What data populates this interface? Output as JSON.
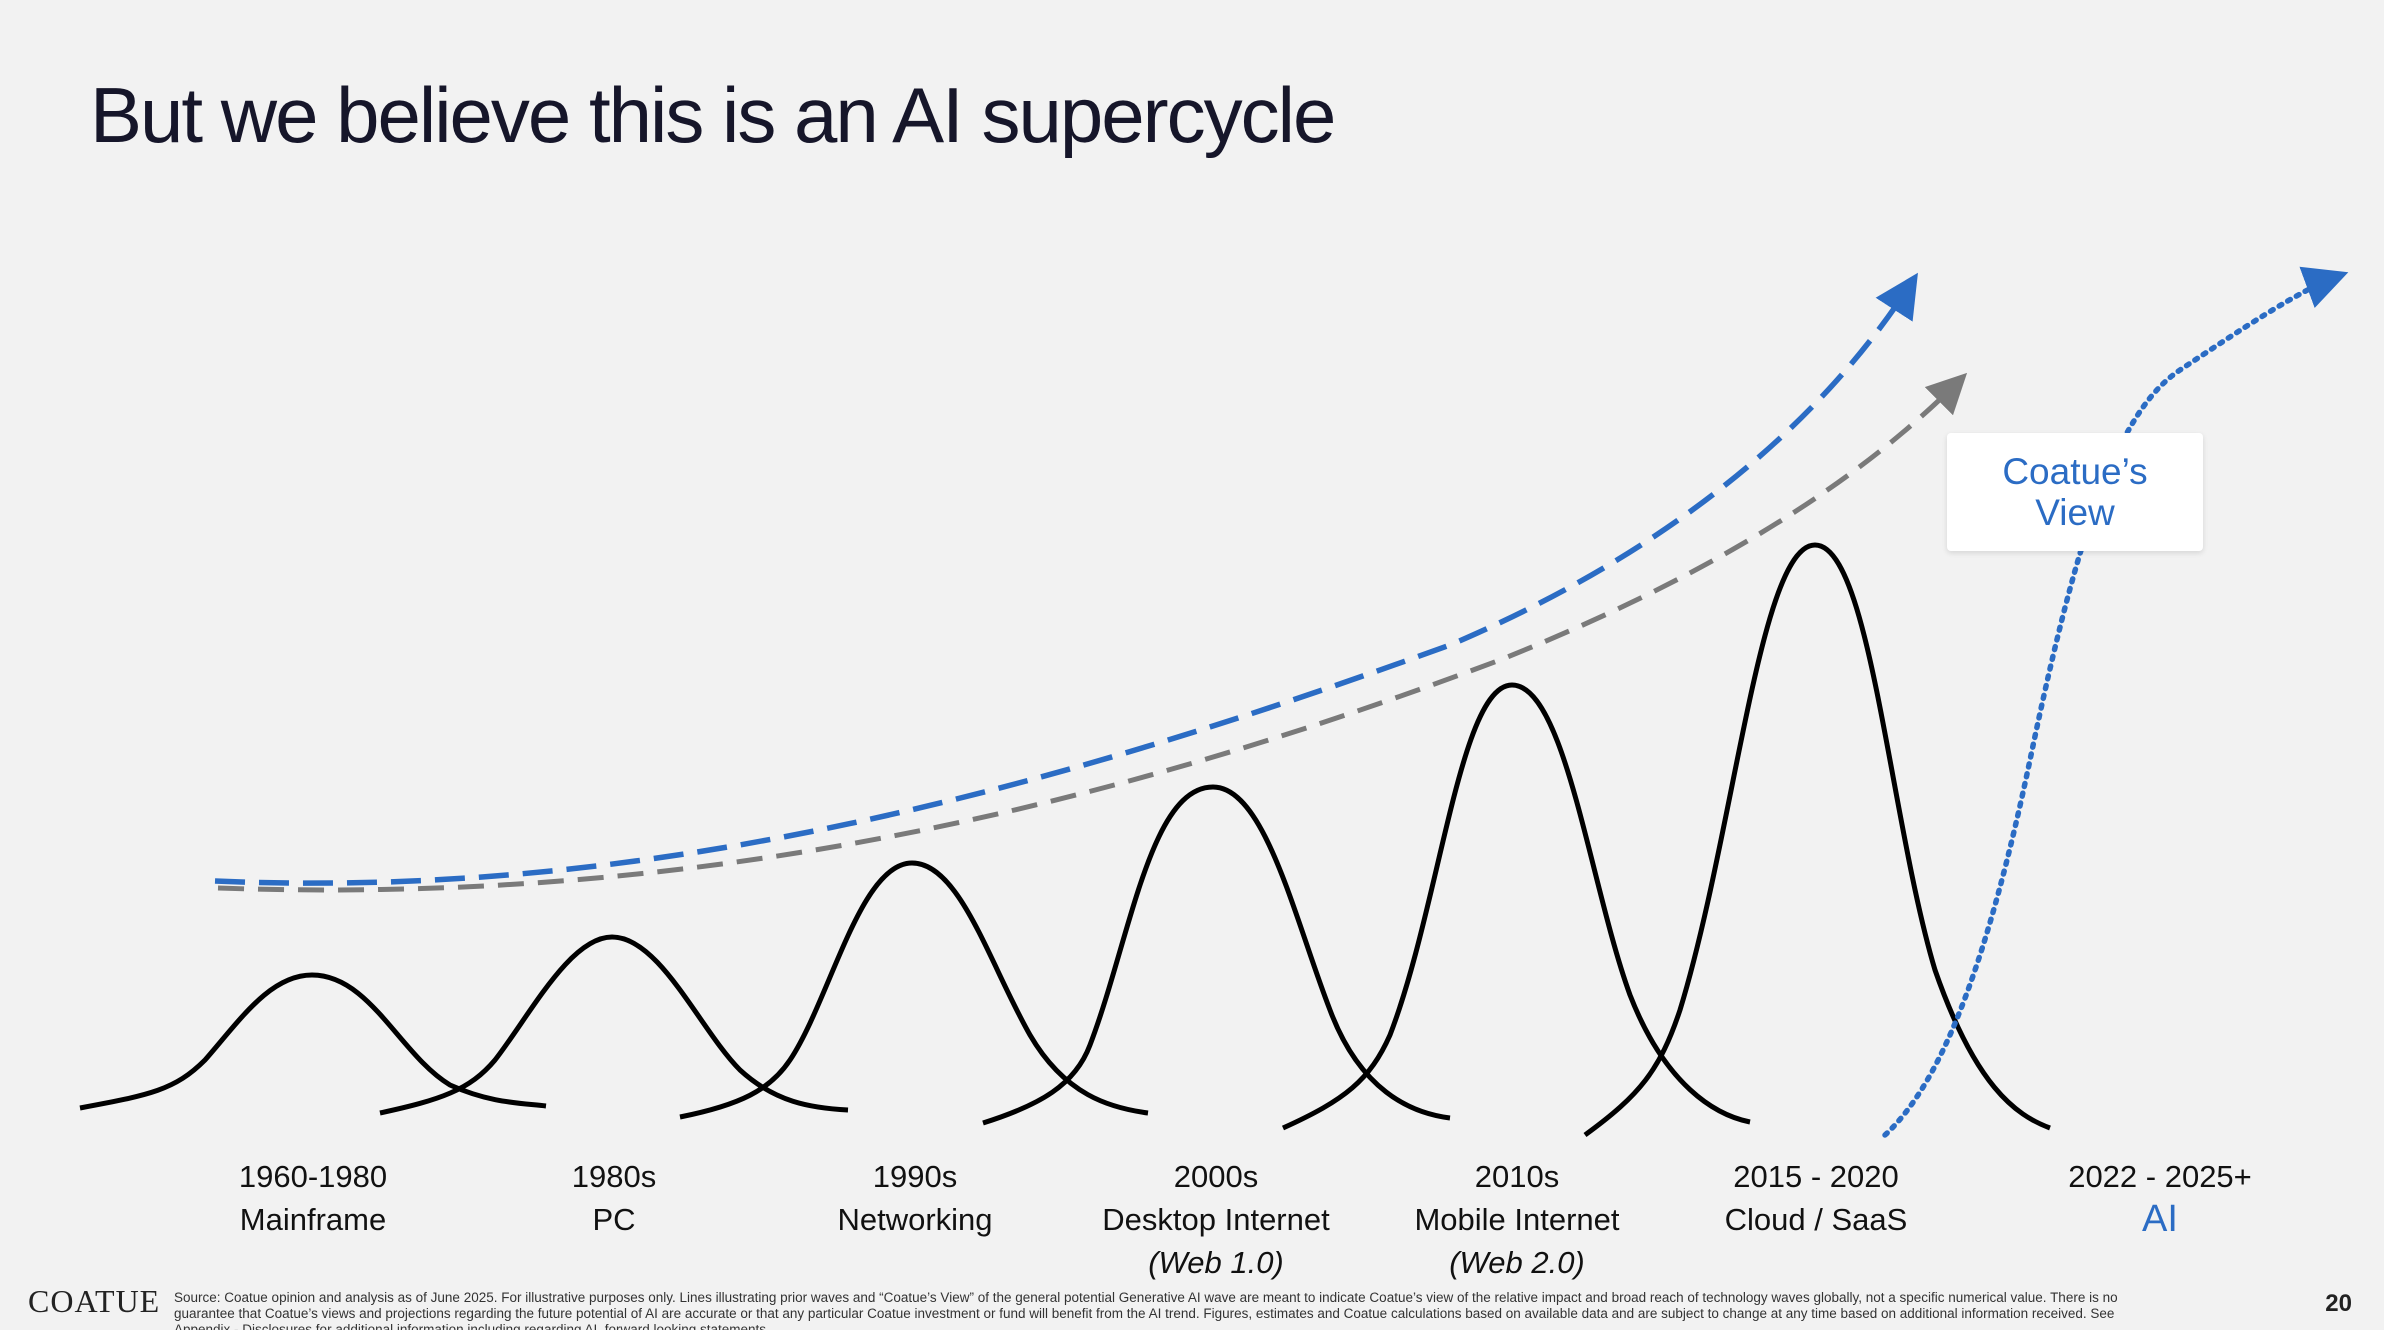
{
  "slide": {
    "title": "But we believe this is an AI supercycle",
    "page_number": "20",
    "logo_text": "COATUE",
    "callout": "Coatue’s View",
    "footnote": "Source: Coatue opinion and analysis as of June 2025. For illustrative purposes only. Lines illustrating prior waves and “Coatue’s View” of the general potential Generative AI wave are meant to indicate Coatue’s view of the relative impact and broad reach of technology waves globally, not a specific numerical value. There is no guarantee that Coatue’s views and projections regarding the future potential of AI are accurate or that any particular Coatue investment or fund will benefit from the AI trend.  Figures, estimates and Coatue calculations based on available data and are subject to change at any time based on additional information received. See Appendix - Disclosures for additional information including regarding AI, forward looking statements."
  },
  "eras": [
    {
      "period": "1960-1980",
      "name": "Mainframe",
      "sub": ""
    },
    {
      "period": "1980s",
      "name": "PC",
      "sub": ""
    },
    {
      "period": "1990s",
      "name": "Networking",
      "sub": ""
    },
    {
      "period": "2000s",
      "name": "Desktop Internet",
      "sub": "(Web 1.0)"
    },
    {
      "period": "2010s",
      "name": "Mobile Internet",
      "sub": "(Web 2.0)"
    },
    {
      "period": "2015 - 2020",
      "name": "Cloud / SaaS",
      "sub": ""
    },
    {
      "period": "2022 - 2025+",
      "name": "AI",
      "sub": ""
    }
  ],
  "colors": {
    "accent_blue": "#2b6cc4",
    "trend_grey": "#7a7a7a",
    "wave_black": "#000000",
    "background": "#f2f2f2"
  }
}
